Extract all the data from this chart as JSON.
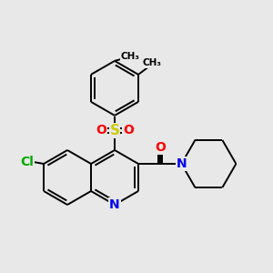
{
  "background_color": "#e8e8e8",
  "bond_color": "#000000",
  "bond_width": 1.4,
  "atom_colors": {
    "N": "#0000ee",
    "Cl": "#00aa00",
    "S": "#cccc00",
    "O": "#ff0000",
    "C": "#000000"
  },
  "font_size": 10,
  "figsize": [
    3.0,
    3.0
  ],
  "dpi": 100
}
